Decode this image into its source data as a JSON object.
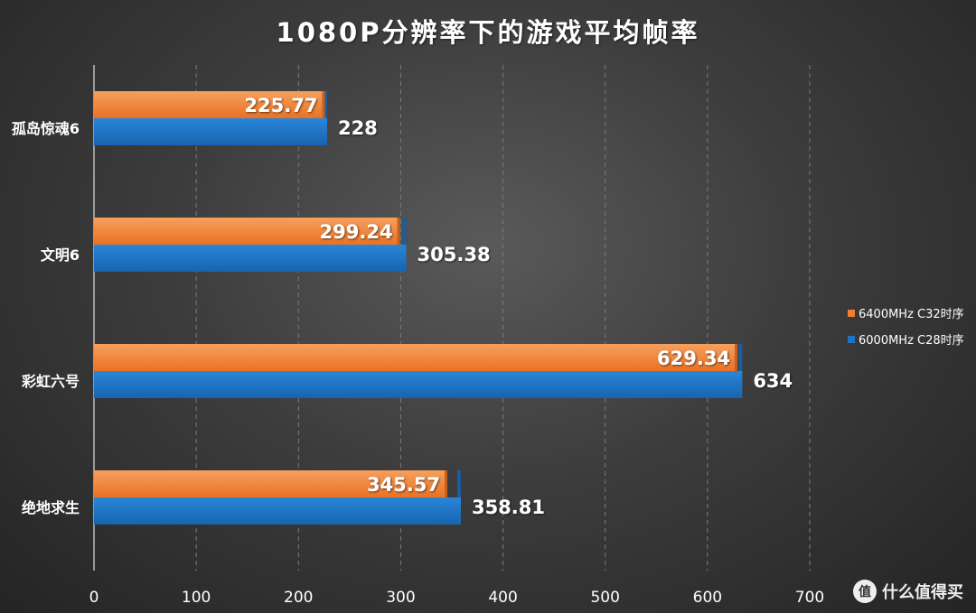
{
  "chart_data": {
    "type": "bar",
    "orientation": "horizontal",
    "title": "1080P分辨率下的游戏平均帧率",
    "categories": [
      "孤岛惊魂6",
      "文明6",
      "彩虹六号",
      "绝地求生"
    ],
    "series": [
      {
        "name": "6400MHz C32时序",
        "values": [
          225.77,
          299.24,
          629.34,
          345.57
        ],
        "color": "#f07f32"
      },
      {
        "name": "6000MHz C28时序",
        "values": [
          228,
          305.38,
          634,
          358.81
        ],
        "color": "#1f74c4"
      }
    ],
    "value_labels": [
      [
        "225.77",
        "299.24",
        "629.34",
        "345.57"
      ],
      [
        "228",
        "305.38",
        "634",
        "358.81"
      ]
    ],
    "xlim": [
      0,
      700
    ],
    "x_ticks": [
      "0",
      "100",
      "200",
      "300",
      "400",
      "500",
      "600",
      "700"
    ],
    "grid": true,
    "legend_position": "right"
  },
  "watermark": {
    "logo_glyph": "值",
    "text": "什么值得买"
  },
  "colors": {
    "orange": "#f07f32",
    "blue": "#1f74c4",
    "grid": "#7a7a7a",
    "text": "#ffffff"
  }
}
